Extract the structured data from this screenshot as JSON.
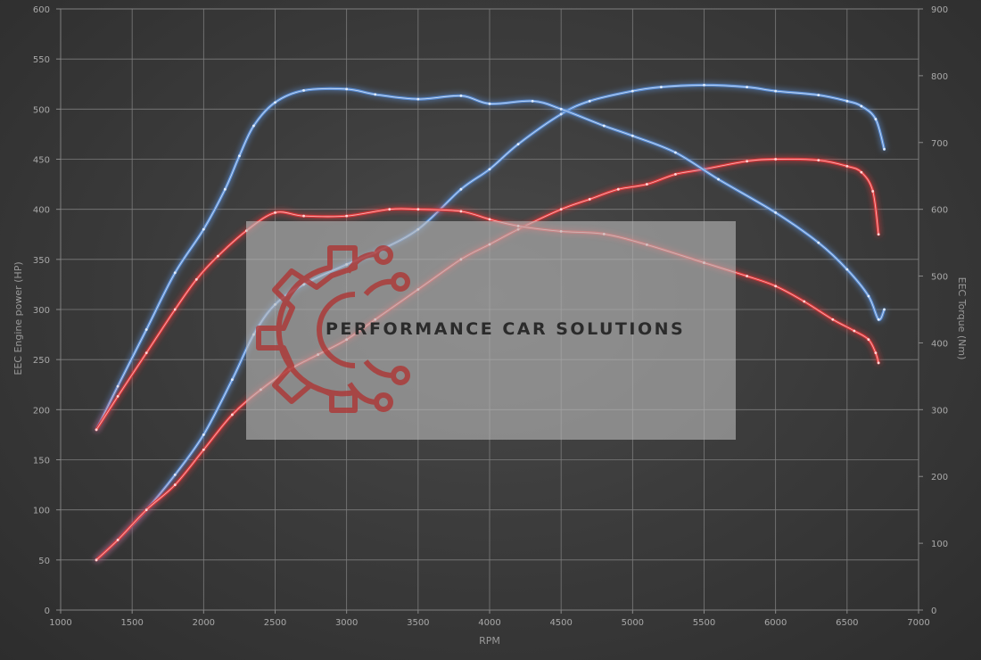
{
  "chart_data": {
    "type": "line",
    "xlabel": "RPM",
    "ylabel_left": "EEC Engine power (HP)",
    "ylabel_right": "EEC Torque (Nm)",
    "xlim": [
      1000,
      7000
    ],
    "ylim_left": [
      0,
      600
    ],
    "ylim_right": [
      0,
      900
    ],
    "x_ticks": [
      1000,
      1500,
      2000,
      2500,
      3000,
      3500,
      4000,
      4500,
      5000,
      5500,
      6000,
      6500,
      7000
    ],
    "y_left_ticks": [
      0,
      50,
      100,
      150,
      200,
      250,
      300,
      350,
      400,
      450,
      500,
      550,
      600
    ],
    "y_right_ticks": [
      0,
      100,
      200,
      300,
      400,
      500,
      600,
      700,
      800,
      900
    ],
    "grid": true,
    "series": [
      {
        "id": "power-tuned",
        "axis": "left",
        "color": "#5b8fd6",
        "x": [
          1250,
          1400,
          1600,
          1800,
          2000,
          2200,
          2350,
          2500,
          2700,
          3000,
          3200,
          3500,
          3800,
          4000,
          4200,
          4500,
          4700,
          5000,
          5200,
          5500,
          5800,
          6000,
          6300,
          6500,
          6600,
          6700,
          6760
        ],
        "y": [
          50,
          70,
          100,
          135,
          175,
          230,
          275,
          305,
          325,
          345,
          357,
          380,
          420,
          440,
          465,
          495,
          508,
          518,
          522,
          524,
          522,
          518,
          514,
          508,
          503,
          490,
          460
        ]
      },
      {
        "id": "power-stock",
        "axis": "left",
        "color": "#e0393b",
        "x": [
          1250,
          1400,
          1600,
          1800,
          2000,
          2200,
          2400,
          2600,
          2800,
          3000,
          3200,
          3500,
          3800,
          4000,
          4200,
          4500,
          4700,
          4900,
          5100,
          5300,
          5500,
          5800,
          6000,
          6300,
          6500,
          6600,
          6680,
          6720
        ],
        "y": [
          50,
          70,
          100,
          125,
          160,
          195,
          220,
          240,
          255,
          270,
          290,
          320,
          350,
          365,
          380,
          400,
          410,
          420,
          425,
          435,
          440,
          448,
          450,
          449,
          443,
          437,
          418,
          375
        ]
      },
      {
        "id": "torque-tuned",
        "axis": "right",
        "color": "#5b8fd6",
        "x": [
          1250,
          1400,
          1600,
          1800,
          2000,
          2150,
          2250,
          2350,
          2500,
          2700,
          3000,
          3200,
          3500,
          3800,
          4000,
          4300,
          4500,
          4800,
          5000,
          5300,
          5600,
          6000,
          6300,
          6500,
          6650,
          6720,
          6760
        ],
        "y": [
          270,
          335,
          420,
          505,
          570,
          630,
          680,
          725,
          760,
          778,
          780,
          772,
          765,
          770,
          758,
          762,
          750,
          725,
          710,
          685,
          645,
          595,
          550,
          510,
          470,
          435,
          450
        ]
      },
      {
        "id": "torque-stock",
        "axis": "right",
        "color": "#e0393b",
        "x": [
          1250,
          1400,
          1600,
          1800,
          1950,
          2100,
          2300,
          2500,
          2700,
          3000,
          3300,
          3500,
          3800,
          4000,
          4200,
          4500,
          4800,
          5100,
          5500,
          5800,
          6000,
          6200,
          6400,
          6550,
          6650,
          6700,
          6720
        ],
        "y": [
          270,
          320,
          385,
          450,
          495,
          530,
          568,
          595,
          590,
          590,
          600,
          600,
          597,
          585,
          575,
          567,
          563,
          547,
          520,
          500,
          485,
          462,
          435,
          418,
          405,
          385,
          370
        ]
      }
    ]
  },
  "watermark": {
    "brand": "PERFORMANCE CAR SOLUTIONS",
    "box_color": "#b8b8b8",
    "logo_color": "#b0302e",
    "logo": "gear-circuit-logo"
  }
}
